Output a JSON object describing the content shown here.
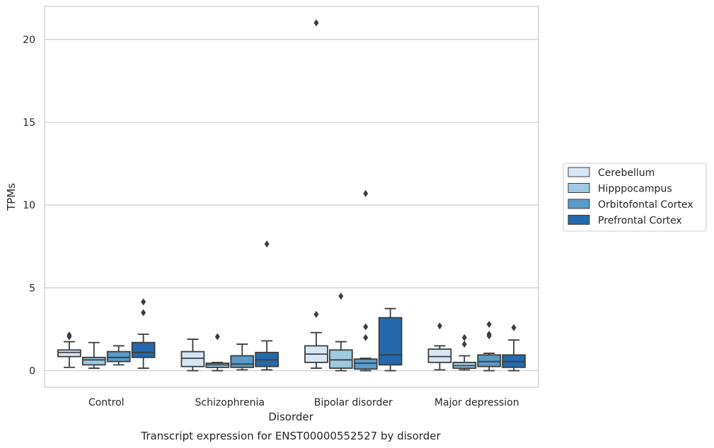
{
  "chart_data": {
    "type": "boxplot",
    "caption": "Transcript expression for ENST00000552527 by disorder",
    "xlabel": "Disorder",
    "ylabel": "TPMs",
    "ylim": [
      -1,
      22
    ],
    "yticks": [
      0,
      5,
      10,
      15,
      20
    ],
    "grid": "horizontal",
    "legend_position": "right",
    "categories": [
      "Control",
      "Schizophrenia",
      "Bipolar disorder",
      "Major depression"
    ],
    "series": [
      {
        "name": "Cerebellum",
        "color": "#d6e6f4",
        "boxes": [
          {
            "whislo": 0.2,
            "q1": 0.85,
            "med": 1.1,
            "q3": 1.25,
            "whishi": 1.75,
            "fliers": [
              2.05,
              2.15
            ]
          },
          {
            "whislo": 0.0,
            "q1": 0.25,
            "med": 0.75,
            "q3": 1.15,
            "whishi": 1.9,
            "fliers": []
          },
          {
            "whislo": 0.15,
            "q1": 0.5,
            "med": 1.0,
            "q3": 1.5,
            "whishi": 2.3,
            "fliers": [
              3.4,
              21.0
            ]
          },
          {
            "whislo": 0.05,
            "q1": 0.5,
            "med": 0.85,
            "q3": 1.3,
            "whishi": 1.5,
            "fliers": [
              2.7
            ]
          }
        ]
      },
      {
        "name": "Hipppocampus",
        "color": "#9ecae1",
        "boxes": [
          {
            "whislo": 0.15,
            "q1": 0.35,
            "med": 0.65,
            "q3": 0.8,
            "whishi": 1.7,
            "fliers": []
          },
          {
            "whislo": 0.0,
            "q1": 0.2,
            "med": 0.35,
            "q3": 0.45,
            "whishi": 0.5,
            "fliers": [
              2.05
            ]
          },
          {
            "whislo": 0.0,
            "q1": 0.15,
            "med": 0.65,
            "q3": 1.25,
            "whishi": 1.75,
            "fliers": [
              4.5
            ]
          },
          {
            "whislo": 0.05,
            "q1": 0.15,
            "med": 0.3,
            "q3": 0.5,
            "whishi": 0.9,
            "fliers": [
              1.6,
              2.0
            ]
          }
        ]
      },
      {
        "name": "Orbitofontal Cortex",
        "color": "#5a9bc9",
        "boxes": [
          {
            "whislo": 0.35,
            "q1": 0.55,
            "med": 0.8,
            "q3": 1.15,
            "whishi": 1.5,
            "fliers": []
          },
          {
            "whislo": 0.05,
            "q1": 0.2,
            "med": 0.4,
            "q3": 0.9,
            "whishi": 1.6,
            "fliers": []
          },
          {
            "whislo": 0.0,
            "q1": 0.1,
            "med": 0.45,
            "q3": 0.7,
            "whishi": 0.75,
            "fliers": [
              2.0,
              2.65,
              10.7
            ]
          },
          {
            "whislo": 0.0,
            "q1": 0.25,
            "med": 0.55,
            "q3": 0.95,
            "whishi": 1.05,
            "fliers": [
              2.1,
              2.2,
              2.8
            ]
          }
        ]
      },
      {
        "name": "Prefrontal Cortex",
        "color": "#2469ab",
        "boxes": [
          {
            "whislo": 0.15,
            "q1": 0.8,
            "med": 1.1,
            "q3": 1.7,
            "whishi": 2.2,
            "fliers": [
              3.5,
              4.15
            ]
          },
          {
            "whislo": 0.05,
            "q1": 0.25,
            "med": 0.65,
            "q3": 1.1,
            "whishi": 1.8,
            "fliers": [
              7.65
            ]
          },
          {
            "whislo": 0.0,
            "q1": 0.35,
            "med": 0.95,
            "q3": 3.2,
            "whishi": 3.75,
            "fliers": []
          },
          {
            "whislo": 0.0,
            "q1": 0.2,
            "med": 0.55,
            "q3": 0.95,
            "whishi": 1.85,
            "fliers": [
              2.6
            ]
          }
        ]
      }
    ]
  }
}
